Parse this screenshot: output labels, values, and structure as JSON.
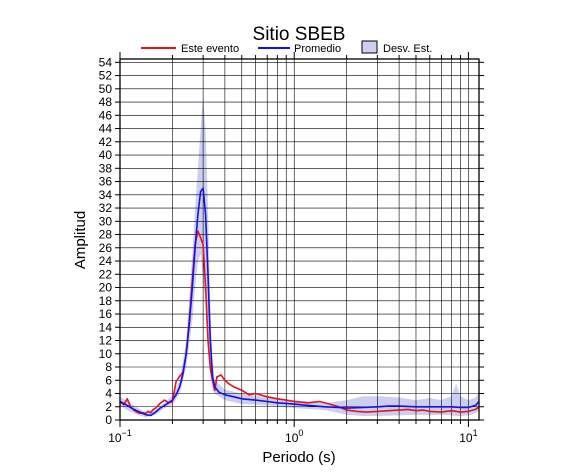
{
  "chart_data": {
    "type": "line",
    "title": "Sitio SBEB",
    "xlabel": "Periodo (s)",
    "ylabel": "Amplitud",
    "x_scale": "log",
    "xlim": [
      0.1,
      11.5
    ],
    "ylim": [
      0,
      54.5
    ],
    "x_ticks": [
      {
        "value": 0.1,
        "mantissa": "10",
        "exp": "−1"
      },
      {
        "value": 1,
        "mantissa": "10",
        "exp": "0"
      },
      {
        "value": 10,
        "mantissa": "10",
        "exp": "1"
      }
    ],
    "y_ticks": [
      0,
      2,
      4,
      6,
      8,
      10,
      12,
      14,
      16,
      18,
      20,
      22,
      24,
      26,
      28,
      30,
      32,
      34,
      36,
      38,
      40,
      42,
      44,
      46,
      48,
      50,
      52,
      54
    ],
    "grid": true,
    "legend_position": "top",
    "legend": [
      {
        "label": "Este evento",
        "kind": "line",
        "color": "#ee1111"
      },
      {
        "label": "Promedio",
        "kind": "line",
        "color": "#1111ee"
      },
      {
        "label": "Desv. Est.",
        "kind": "band",
        "color": "#cccff0"
      }
    ],
    "series": [
      {
        "name": "Este evento",
        "color": "#ee1111",
        "x": [
          0.1,
          0.105,
          0.11,
          0.115,
          0.12,
          0.125,
          0.13,
          0.135,
          0.14,
          0.145,
          0.15,
          0.155,
          0.16,
          0.17,
          0.18,
          0.19,
          0.2,
          0.21,
          0.22,
          0.23,
          0.24,
          0.25,
          0.26,
          0.27,
          0.28,
          0.29,
          0.3,
          0.31,
          0.32,
          0.33,
          0.34,
          0.35,
          0.36,
          0.38,
          0.4,
          0.42,
          0.45,
          0.5,
          0.55,
          0.6,
          0.7,
          0.8,
          0.9,
          1.0,
          1.2,
          1.4,
          1.6,
          1.8,
          2.0,
          2.3,
          2.6,
          3.0,
          3.5,
          4.0,
          4.5,
          5.0,
          5.5,
          6.0,
          7.0,
          8.0,
          9.0,
          10.0,
          11.0,
          11.5
        ],
        "y": [
          2.8,
          2.3,
          3.2,
          2.0,
          1.5,
          1.2,
          1.0,
          1.1,
          1.0,
          1.3,
          1.1,
          1.6,
          1.8,
          2.5,
          3.0,
          2.6,
          2.8,
          5.8,
          6.6,
          7.2,
          10.0,
          15.0,
          21.0,
          26.5,
          28.5,
          27.5,
          26.5,
          20.0,
          12.0,
          7.8,
          6.0,
          4.5,
          6.5,
          6.8,
          6.0,
          5.5,
          5.0,
          4.5,
          3.8,
          4.0,
          3.5,
          3.2,
          3.0,
          2.8,
          2.6,
          2.8,
          2.4,
          2.0,
          1.5,
          1.3,
          1.2,
          1.3,
          1.4,
          1.5,
          1.6,
          1.4,
          1.5,
          1.3,
          1.2,
          1.4,
          1.2,
          1.3,
          1.6,
          2.0
        ]
      },
      {
        "name": "Promedio",
        "color": "#1111ee",
        "x": [
          0.1,
          0.11,
          0.12,
          0.13,
          0.14,
          0.15,
          0.16,
          0.17,
          0.18,
          0.19,
          0.2,
          0.21,
          0.22,
          0.23,
          0.24,
          0.25,
          0.26,
          0.27,
          0.28,
          0.29,
          0.3,
          0.31,
          0.32,
          0.33,
          0.34,
          0.35,
          0.37,
          0.4,
          0.45,
          0.5,
          0.6,
          0.7,
          0.8,
          1.0,
          1.2,
          1.5,
          1.8,
          2.0,
          2.5,
          3.0,
          3.5,
          4.0,
          5.0,
          6.0,
          7.0,
          8.0,
          9.0,
          10.0,
          11.0,
          11.5
        ],
        "y": [
          2.8,
          2.2,
          1.6,
          1.2,
          0.8,
          0.7,
          1.2,
          1.8,
          2.2,
          2.6,
          3.0,
          3.8,
          5.0,
          7.0,
          10.0,
          14.5,
          20.0,
          26.0,
          31.0,
          34.5,
          35.0,
          31.0,
          22.0,
          12.0,
          6.5,
          5.0,
          4.2,
          3.8,
          3.5,
          3.2,
          3.0,
          2.8,
          2.6,
          2.4,
          2.2,
          2.0,
          1.9,
          1.8,
          1.9,
          2.0,
          2.1,
          2.1,
          2.0,
          2.0,
          2.0,
          2.0,
          1.9,
          1.9,
          2.2,
          2.8
        ]
      }
    ],
    "band": {
      "name": "Desv. Est.",
      "color": "#cccff0",
      "x": [
        0.1,
        0.12,
        0.14,
        0.16,
        0.18,
        0.2,
        0.22,
        0.24,
        0.26,
        0.27,
        0.28,
        0.29,
        0.3,
        0.31,
        0.32,
        0.33,
        0.34,
        0.35,
        0.4,
        0.5,
        0.7,
        1.0,
        1.5,
        2.0,
        2.5,
        3.0,
        4.0,
        5.0,
        6.0,
        7.0,
        8.0,
        8.5,
        9.0,
        10.0,
        11.0,
        11.5
      ],
      "upper": [
        3.5,
        2.2,
        1.2,
        1.6,
        2.6,
        3.7,
        6.0,
        12.0,
        25.0,
        32.0,
        38.0,
        44.0,
        49.0,
        44.0,
        32.0,
        17.0,
        8.5,
        6.0,
        4.6,
        4.0,
        3.4,
        3.0,
        2.5,
        3.0,
        3.6,
        3.6,
        3.4,
        3.0,
        3.3,
        3.0,
        3.6,
        5.5,
        3.6,
        3.0,
        3.4,
        4.2
      ],
      "lower": [
        2.1,
        1.0,
        0.4,
        0.8,
        1.8,
        2.3,
        4.0,
        8.0,
        15.0,
        20.0,
        24.0,
        25.0,
        21.0,
        18.0,
        12.0,
        7.0,
        4.5,
        4.0,
        3.0,
        2.4,
        2.2,
        1.8,
        1.5,
        0.8,
        0.6,
        0.6,
        0.7,
        0.8,
        0.7,
        0.8,
        0.7,
        0.6,
        0.6,
        0.7,
        1.0,
        1.4
      ]
    }
  }
}
